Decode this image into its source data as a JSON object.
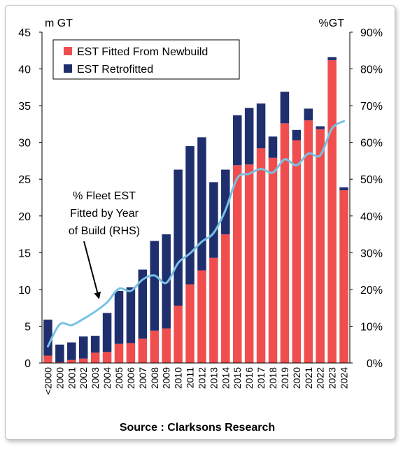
{
  "chart_data": {
    "type": "bar",
    "stacked": true,
    "left_unit": "m GT",
    "right_unit": "%GT",
    "ylim": [
      0,
      45
    ],
    "y2lim": [
      0,
      90
    ],
    "yticks": [
      "0",
      "5",
      "10",
      "15",
      "20",
      "25",
      "30",
      "35",
      "40",
      "45"
    ],
    "y2ticks": [
      "0%",
      "10%",
      "20%",
      "30%",
      "40%",
      "50%",
      "60%",
      "70%",
      "80%",
      "90%"
    ],
    "categories": [
      "<2000",
      "2000",
      "2001",
      "2002",
      "2003",
      "2004",
      "2005",
      "2006",
      "2007",
      "2008",
      "2009",
      "2010",
      "2011",
      "2012",
      "2013",
      "2014",
      "2015",
      "2016",
      "2017",
      "2018",
      "2019",
      "2020",
      "2021",
      "2022",
      "2023",
      "2024"
    ],
    "series": [
      {
        "name": "EST Fitted From Newbuild",
        "color": "#f04e4e",
        "values": [
          1.0,
          0.1,
          0.4,
          0.6,
          1.4,
          1.5,
          2.6,
          2.7,
          3.3,
          4.4,
          4.7,
          7.8,
          10.7,
          12.6,
          14.3,
          17.5,
          26.9,
          27.0,
          29.2,
          27.9,
          32.6,
          30.3,
          33.0,
          31.8,
          41.2,
          23.5
        ]
      },
      {
        "name": "EST Retrofitted",
        "color": "#1f2f6e",
        "values": [
          4.9,
          2.4,
          2.4,
          3.0,
          2.3,
          5.3,
          7.2,
          7.6,
          9.4,
          12.2,
          12.8,
          18.5,
          18.8,
          18.1,
          10.3,
          8.8,
          6.8,
          7.7,
          6.1,
          2.9,
          4.3,
          1.4,
          1.6,
          0.4,
          0.4,
          0.4
        ]
      }
    ],
    "line_series": {
      "name": "% Fleet EST Fitted by Year of Build (RHS)",
      "color": "#77c2e4",
      "values": [
        4.5,
        10.5,
        10.3,
        12.0,
        14.0,
        16.5,
        20.2,
        19.6,
        22.7,
        23.8,
        21.8,
        27.2,
        29.8,
        33.0,
        35.4,
        41.6,
        50.3,
        51.5,
        52.8,
        51.8,
        55.4,
        53.8,
        57.0,
        56.5,
        63.8,
        65.8
      ]
    },
    "legend_position": "top-left",
    "annotation": {
      "lines": [
        "% Fleet EST",
        "Fitted by Year",
        "of Build (RHS)"
      ]
    },
    "source": "Source : Clarksons Research"
  }
}
